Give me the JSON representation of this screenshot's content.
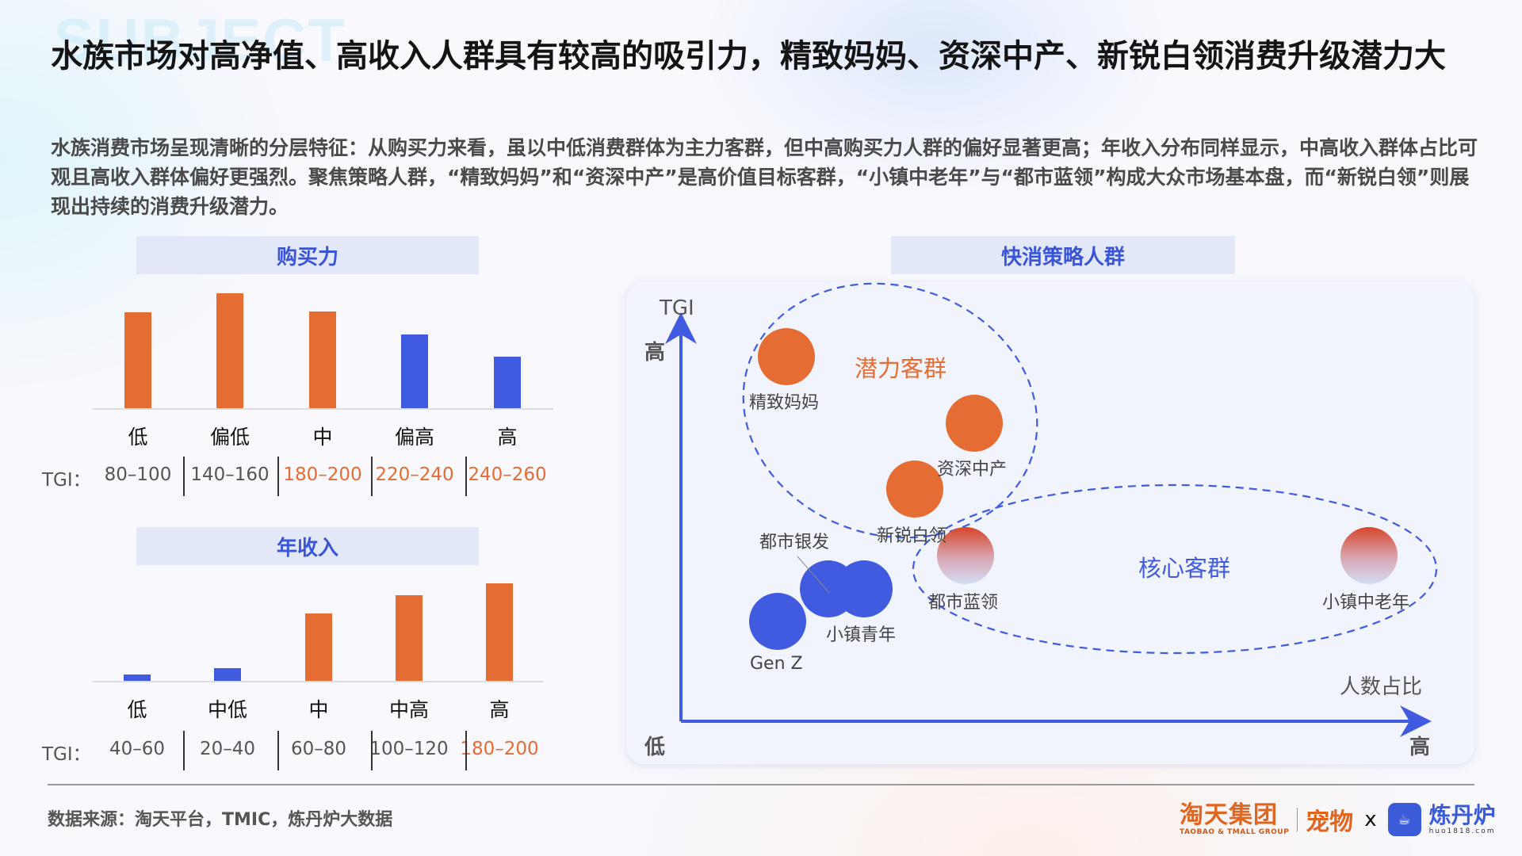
{
  "watermark": "SUBJECT",
  "title": "水族市场对高净值、高收入人群具有较高的吸引力，精致妈妈、资深中产、新锐白领消费升级潜力大",
  "subtitle": "水族消费市场呈现清晰的分层特征：从购买力来看，虽以中低消费群体为主力客群，但中高购买力人群的偏好显著更高；年收入分布同样显示，中高收入群体占比可观且高收入群体偏好更强烈。聚焦策略人群，“精致妈妈”和“资深中产”是高价值目标客群，“小镇中老年”与“都市蓝领”构成大众市场基本盘，而“新锐白领”则展现出持续的消费升级潜力。",
  "colors": {
    "orange": "#e56c33",
    "blue": "#405be0",
    "header_bg": "#e3e8f8",
    "header_text": "#3b55d9"
  },
  "tgi_prefix": "TGI：",
  "chart_data": [
    {
      "type": "bar",
      "title": "购买力",
      "categories": [
        "低",
        "偏低",
        "中",
        "偏高",
        "高"
      ],
      "values": [
        121,
        145,
        122,
        93,
        65
      ],
      "value_unit": "relative bar height (px, no axis shown)",
      "bar_colors": [
        "#e56c33",
        "#e56c33",
        "#e56c33",
        "#405be0",
        "#405be0"
      ],
      "tgi": [
        "80-100",
        "140-160",
        "180-200",
        "220-240",
        "240-260"
      ],
      "tgi_highlight": [
        false,
        false,
        true,
        true,
        true
      ],
      "xlabel": "",
      "ylabel": "",
      "grid": false
    },
    {
      "type": "bar",
      "title": "年收入",
      "categories": [
        "低",
        "中低",
        "中",
        "中高",
        "高"
      ],
      "values": [
        8,
        16,
        85,
        108,
        123
      ],
      "value_unit": "relative bar height (px, no axis shown)",
      "bar_colors": [
        "#405be0",
        "#405be0",
        "#e56c33",
        "#e56c33",
        "#e56c33"
      ],
      "tgi": [
        "40-60",
        "20-40",
        "60-80",
        "100-120",
        "180-200"
      ],
      "tgi_highlight": [
        false,
        false,
        false,
        false,
        true
      ],
      "xlabel": "",
      "ylabel": "",
      "grid": false
    },
    {
      "type": "scatter",
      "title": "快消策略人群",
      "xlabel": "人数占比",
      "ylabel": "TGI",
      "x_low": "低",
      "x_high": "高",
      "y_high": "高",
      "points": [
        {
          "name": "精致妈妈",
          "x": 0.15,
          "y": 0.86,
          "group": "潜力客群",
          "color": "#e56c33"
        },
        {
          "name": "资深中产",
          "x": 0.4,
          "y": 0.67,
          "group": "潜力客群",
          "color": "#e56c33"
        },
        {
          "name": "新锐白领",
          "x": 0.32,
          "y": 0.49,
          "group": "潜力客群",
          "color": "#e56c33"
        },
        {
          "name": "都市蓝领",
          "x": 0.39,
          "y": 0.31,
          "group": "核心客群",
          "color": "gradient"
        },
        {
          "name": "小镇中老年",
          "x": 0.93,
          "y": 0.31,
          "group": "核心客群",
          "color": "gradient"
        },
        {
          "name": "都市银发",
          "x": 0.2,
          "y": 0.22,
          "group": "",
          "color": "#405be0"
        },
        {
          "name": "小镇青年",
          "x": 0.25,
          "y": 0.22,
          "group": "",
          "color": "#405be0"
        },
        {
          "name": "Gen Z",
          "x": 0.13,
          "y": 0.13,
          "group": "",
          "color": "#405be0"
        }
      ],
      "groups": [
        {
          "name": "潜力客群",
          "color": "#e56c33"
        },
        {
          "name": "核心客群",
          "color": "#405be0"
        }
      ]
    }
  ],
  "bubble": {
    "axis_y_title": "TGI",
    "axis_x_title": "人数占比",
    "y_high": "高",
    "x_low": "低",
    "x_high": "高",
    "group_potential": "潜力客群",
    "group_core": "核心客群",
    "labels": {
      "jingzhi_mama": "精致妈妈",
      "zishen_zhongchan": "资深中产",
      "xinrui_bailing": "新锐白领",
      "dushi_lanling": "都市蓝领",
      "xiaozhen_zhonglaonian": "小镇中老年",
      "dushi_yinfa": "都市银发",
      "xiaozhen_qingnian": "小镇青年",
      "gen_z": "Gen Z"
    }
  },
  "footer": {
    "source": "数据来源：淘天平台，TMIC，炼丹炉大数据",
    "logo_taotian": "淘天集团",
    "logo_taotian_en": "TAOBAO & TMALL GROUP",
    "logo_pet": "宠物",
    "logo_x": "x",
    "logo_lianfu": "炼丹炉",
    "logo_lianfu_en": "huo1818.com"
  }
}
